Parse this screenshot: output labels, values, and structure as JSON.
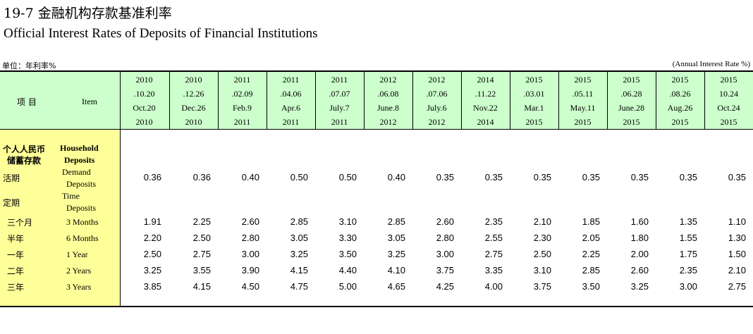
{
  "title_cn": "19-7  金融机构存款基准利率",
  "title_en": "Official Interest Rates of Deposits of Financial Institutions",
  "unit_left": "单位：年利率%",
  "unit_right": "(Annual Interest Rate %)",
  "header": {
    "item_cn": "项  目",
    "item_en": "Item"
  },
  "dates": [
    [
      "2010",
      ".10.20",
      "Oct.20",
      "2010"
    ],
    [
      "2010",
      ".12.26",
      "Dec.26",
      "2010"
    ],
    [
      "2011",
      ".02.09",
      "Feb.9",
      "2011"
    ],
    [
      "2011",
      ".04.06",
      "Apr.6",
      "2011"
    ],
    [
      "2011",
      ".07.07",
      "July.7",
      "2011"
    ],
    [
      "2012",
      ".06.08",
      "June.8",
      "2012"
    ],
    [
      "2012",
      ".07.06",
      "July.6",
      "2012"
    ],
    [
      "2014",
      ".11.22",
      "Nov.22",
      "2014"
    ],
    [
      "2015",
      ".03.01",
      "Mar.1",
      "2015"
    ],
    [
      "2015",
      ".05.11",
      "May.11",
      "2015"
    ],
    [
      "2015",
      ".06.28",
      "June.28",
      "2015"
    ],
    [
      "2015",
      ".08.26",
      "Aug.26",
      "2015"
    ],
    [
      "2015",
      "10.24",
      "Oct.24",
      "2015"
    ]
  ],
  "section": {
    "cn_1": "个人人民币",
    "cn_2": "储蓄存款",
    "en_1": "Household",
    "en_2": "Deposits"
  },
  "demand": {
    "cn": "活期",
    "en_1": "Demand",
    "en_2": "Deposits",
    "values": [
      "0.36",
      "0.36",
      "0.40",
      "0.50",
      "0.50",
      "0.40",
      "0.35",
      "0.35",
      "0.35",
      "0.35",
      "0.35",
      "0.35",
      "0.35"
    ]
  },
  "time": {
    "cn": "定期",
    "en_1": "Time",
    "en_2": "Deposits"
  },
  "rows": [
    {
      "cn": "三个月",
      "en": "3 Months",
      "values": [
        "1.91",
        "2.25",
        "2.60",
        "2.85",
        "3.10",
        "2.85",
        "2.60",
        "2.35",
        "2.10",
        "1.85",
        "1.60",
        "1.35",
        "1.10"
      ]
    },
    {
      "cn": "半年",
      "en": "6 Months",
      "values": [
        "2.20",
        "2.50",
        "2.80",
        "3.05",
        "3.30",
        "3.05",
        "2.80",
        "2.55",
        "2.30",
        "2.05",
        "1.80",
        "1.55",
        "1.30"
      ]
    },
    {
      "cn": "一年",
      "en": "1 Year",
      "values": [
        "2.50",
        "2.75",
        "3.00",
        "3.25",
        "3.50",
        "3.25",
        "3.00",
        "2.75",
        "2.50",
        "2.25",
        "2.00",
        "1.75",
        "1.50"
      ]
    },
    {
      "cn": "二年",
      "en": "2 Years",
      "values": [
        "3.25",
        "3.55",
        "3.90",
        "4.15",
        "4.40",
        "4.10",
        "3.75",
        "3.35",
        "3.10",
        "2.85",
        "2.60",
        "2.35",
        "2.10"
      ]
    },
    {
      "cn": "三年",
      "en": "3 Years",
      "values": [
        "3.85",
        "4.15",
        "4.50",
        "4.75",
        "5.00",
        "4.65",
        "4.25",
        "4.00",
        "3.75",
        "3.50",
        "3.25",
        "3.00",
        "2.75"
      ]
    }
  ],
  "colors": {
    "header_bg": "#ccffcc",
    "item_bg": "#ffff99"
  }
}
